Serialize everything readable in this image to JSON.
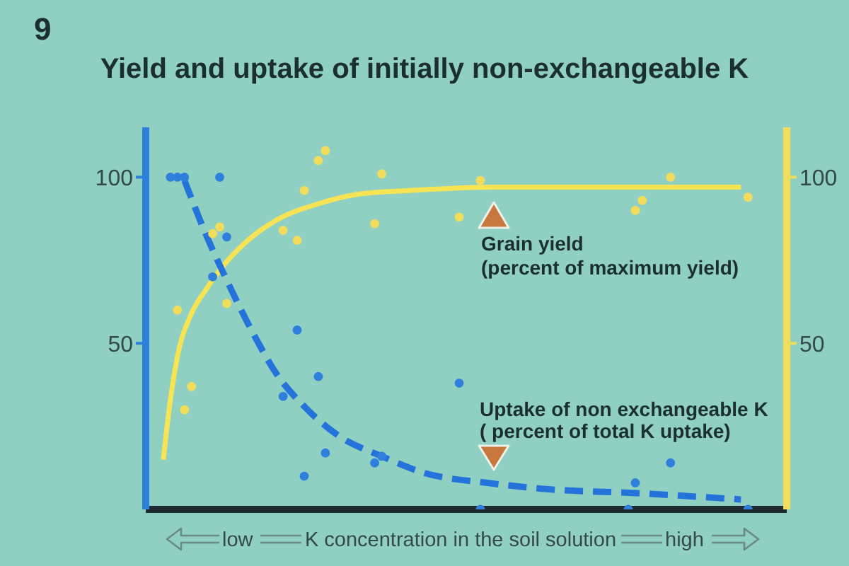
{
  "chart_data": {
    "type": "scatter",
    "title": "Yield and uptake of initially non-exchangeable K",
    "xlabel": "K concentration in the soil solution",
    "annotations": [
      "9",
      "Grain yield\n(percent of maximum yield)",
      "Uptake of non exchangeable K\n( percent of total K uptake)",
      "low",
      "high"
    ],
    "categories": [
      null,
      null,
      null,
      null,
      null,
      null,
      null,
      null,
      null,
      null,
      null,
      null,
      null,
      null,
      null,
      null,
      null,
      null,
      null,
      null,
      null,
      null,
      null,
      null,
      null,
      null,
      null,
      null,
      null,
      null,
      null,
      null,
      null,
      null,
      null,
      null,
      null,
      null,
      null,
      null,
      null,
      null,
      null,
      null,
      null,
      null,
      null,
      null,
      null,
      null,
      null,
      null,
      null,
      null,
      null,
      null,
      null,
      null,
      null,
      null,
      null,
      null,
      null,
      null,
      null,
      null,
      null,
      null,
      null,
      null,
      null,
      null,
      null,
      null,
      null,
      null,
      null,
      null,
      null,
      null,
      null,
      null,
      null,
      null,
      null,
      null,
      null,
      null,
      null,
      null,
      null
    ],
    "series": [
      {
        "marker": "circle",
        "axis": "y2",
        "color": "#f2dc5c",
        "values": [
          null,
          null,
          null,
          null,
          60,
          30,
          37,
          null,
          null,
          83,
          85,
          62,
          null,
          null,
          null,
          null,
          null,
          null,
          null,
          84,
          null,
          81,
          96,
          null,
          105,
          108,
          null,
          null,
          null,
          null,
          null,
          null,
          86,
          101,
          null,
          null,
          null,
          null,
          null,
          null,
          null,
          null,
          null,
          null,
          88,
          null,
          null,
          99,
          null,
          null,
          null,
          null,
          null,
          null,
          null,
          null,
          null,
          null,
          null,
          null,
          null,
          null,
          null,
          null,
          null,
          null,
          null,
          null,
          null,
          90,
          93,
          null,
          null,
          null,
          100,
          null,
          null,
          null,
          null,
          null,
          null,
          null,
          null,
          null,
          null,
          94,
          null,
          null,
          null,
          null,
          null
        ]
      },
      {
        "type": "line",
        "line_style": "solid",
        "axis": "y2",
        "color": "#f7e455",
        "values": [
          null,
          null,
          15,
          33,
          46,
          null,
          59,
          null,
          66,
          null,
          72,
          null,
          null,
          null,
          81,
          null,
          null,
          null,
          87,
          null,
          null,
          null,
          null,
          null,
          92,
          null,
          null,
          null,
          null,
          null,
          95,
          null,
          null,
          null,
          null,
          null,
          null,
          96,
          null,
          null,
          null,
          null,
          null,
          null,
          null,
          null,
          null,
          null,
          null,
          97,
          null,
          null,
          null,
          null,
          null,
          null,
          null,
          null,
          null,
          null,
          null,
          null,
          97,
          null,
          null,
          null,
          null,
          null,
          null,
          null,
          null,
          null,
          null,
          null,
          null,
          null,
          null,
          null,
          null,
          null,
          null,
          null,
          null,
          null,
          97,
          null,
          null,
          null,
          null,
          null,
          null
        ]
      },
      {
        "marker": "circle",
        "color": "#2f7fdc",
        "values": [
          null,
          null,
          null,
          100,
          100,
          100,
          null,
          null,
          null,
          70,
          100,
          82,
          null,
          null,
          null,
          null,
          null,
          null,
          null,
          34,
          null,
          54,
          10,
          null,
          40,
          17,
          null,
          null,
          null,
          null,
          null,
          null,
          14,
          16,
          null,
          null,
          null,
          null,
          null,
          null,
          null,
          null,
          null,
          null,
          38,
          null,
          null,
          0,
          null,
          null,
          null,
          null,
          null,
          null,
          null,
          null,
          null,
          null,
          null,
          null,
          null,
          null,
          null,
          null,
          null,
          null,
          null,
          null,
          0,
          8,
          null,
          null,
          null,
          null,
          14,
          null,
          null,
          null,
          null,
          null,
          null,
          null,
          null,
          null,
          null,
          0,
          null,
          null,
          null,
          null,
          null
        ]
      },
      {
        "type": "line",
        "line_style": "dashed",
        "color": "#2473da",
        "values": [
          null,
          null,
          null,
          null,
          null,
          99,
          null,
          null,
          83,
          null,
          null,
          69,
          null,
          null,
          null,
          52,
          null,
          null,
          41,
          null,
          null,
          null,
          31,
          null,
          null,
          null,
          null,
          22,
          null,
          null,
          null,
          null,
          null,
          16,
          null,
          null,
          null,
          null,
          null,
          11,
          null,
          null,
          null,
          null,
          null,
          null,
          null,
          null,
          8,
          null,
          null,
          null,
          null,
          null,
          null,
          null,
          null,
          6,
          null,
          null,
          null,
          null,
          null,
          null,
          null,
          null,
          null,
          null,
          5,
          null,
          null,
          null,
          null,
          null,
          null,
          null,
          null,
          null,
          null,
          null,
          null,
          null,
          null,
          null,
          3,
          null,
          null,
          null,
          null,
          null,
          null
        ]
      }
    ],
    "ylim": [
      0,
      115
    ],
    "yticks": [
      50,
      100
    ],
    "y2lim": [
      0,
      115
    ],
    "y2ticks": [
      50,
      100
    ]
  }
}
